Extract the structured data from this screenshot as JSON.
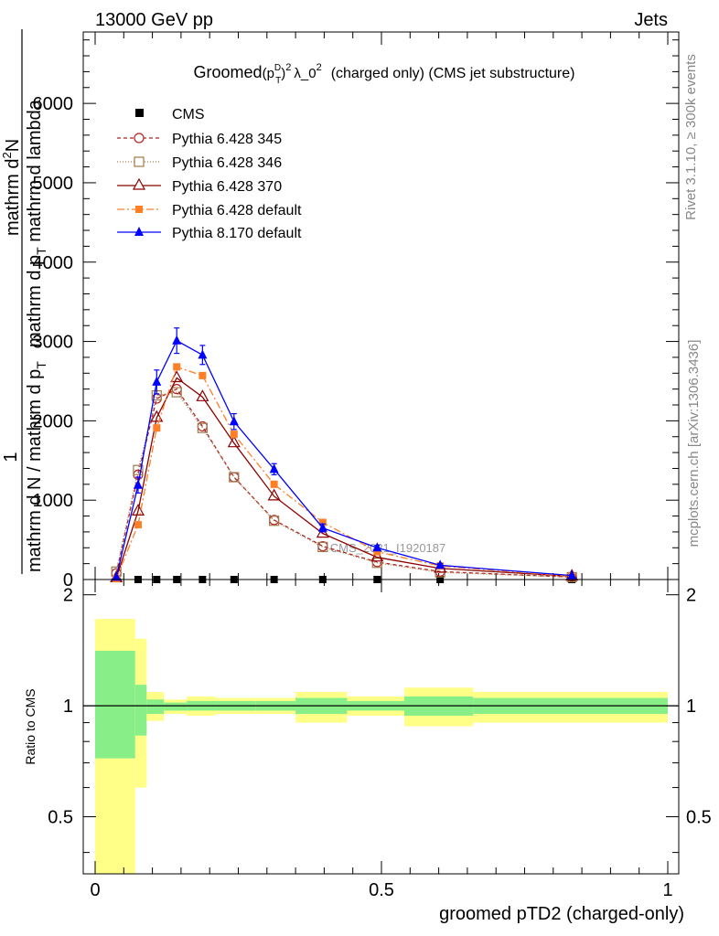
{
  "header": {
    "energy_label": "13000 GeV pp",
    "process_label": "Jets",
    "rivet_label": "Rivet 3.1.10, ≥ 300k events",
    "mcplots_label": "mcplots.cern.ch [arXiv:1306.3436]"
  },
  "chart_data": [
    {
      "type": "line",
      "title_main": "Groomed",
      "title_formula": "(p",
      "title_sup_d": "D",
      "title_sub_t": "T",
      "title_close": ")",
      "title_sup_2a": "2",
      "title_lambda": "λ_0",
      "title_sup_2b": "2",
      "title_tail": "(charged only) (CMS jet substructure)",
      "ylabel_lines": [
        "1",
        "mathrm d N / mathrm d p_T",
        "mathrm d p_T mathrm d lambda",
        "mathrm d^2N"
      ],
      "ylabel_parts": {
        "one": "1",
        "denominator": "mathrm d N / mathrm d p",
        "denominator_sub": "T",
        "numerator_a": "mathrm d p",
        "numerator_a_sub": "T",
        "numerator_b": " mathrm d lambda",
        "numerator_c": "mathrm d",
        "numerator_c_sup": "2",
        "numerator_d": "N"
      },
      "xlim": [
        0,
        1
      ],
      "ylim": [
        0,
        6900
      ],
      "yticks": [
        0,
        1000,
        2000,
        3000,
        4000,
        5000,
        6000
      ],
      "ytick_labels": [
        "0",
        "1000",
        "2000",
        "3000",
        "4000",
        "5000",
        "6000"
      ],
      "watermark": "CMS_2021_I1920187",
      "legend": {
        "cms": "CMS",
        "py345": "Pythia 6.428 345",
        "py346": "Pythia 6.428 346",
        "py370": "Pythia 6.428 370",
        "pydef": "Pythia 6.428 default",
        "py8": "Pythia 8.170 default"
      },
      "series": [
        {
          "name": "CMS",
          "color": "#000000",
          "x": [
            0.075,
            0.1075,
            0.1425,
            0.1875,
            0.2425,
            0.3125,
            0.3975,
            0.4925,
            0.6025,
            0.8325
          ],
          "y": [
            0,
            0,
            0,
            0,
            0,
            0,
            0,
            0,
            0,
            0
          ]
        },
        {
          "name": "Pythia 6.428 345",
          "color": "#b22222",
          "x": [
            0.037,
            0.075,
            0.1075,
            0.1425,
            0.1875,
            0.2425,
            0.3125,
            0.3975,
            0.4925,
            0.6025,
            0.8325
          ],
          "y": [
            80,
            1320,
            2280,
            2400,
            1930,
            1290,
            750,
            420,
            220,
            100,
            30
          ]
        },
        {
          "name": "Pythia 6.428 346",
          "color": "#a0784a",
          "x": [
            0.037,
            0.075,
            0.1075,
            0.1425,
            0.1875,
            0.2425,
            0.3125,
            0.3975,
            0.4925,
            0.6025,
            0.8325
          ],
          "y": [
            100,
            1380,
            2320,
            2360,
            1910,
            1290,
            740,
            410,
            210,
            90,
            30
          ]
        },
        {
          "name": "Pythia 6.428 370",
          "color": "#8b0000",
          "x": [
            0.037,
            0.075,
            0.1075,
            0.1425,
            0.1875,
            0.2425,
            0.3125,
            0.3975,
            0.4925,
            0.6025,
            0.8325
          ],
          "y": [
            20,
            860,
            2040,
            2540,
            2300,
            1720,
            1050,
            580,
            280,
            140,
            40
          ]
        },
        {
          "name": "Pythia 6.428 default",
          "color": "#ff7f27",
          "x": [
            0.037,
            0.075,
            0.1075,
            0.1425,
            0.1875,
            0.2425,
            0.3125,
            0.3975,
            0.4925,
            0.6025,
            0.8325
          ],
          "y": [
            10,
            690,
            1910,
            2680,
            2570,
            1830,
            1200,
            720,
            350,
            170,
            40
          ]
        },
        {
          "name": "Pythia 8.170 default",
          "color": "#0000ff",
          "x": [
            0.037,
            0.075,
            0.1075,
            0.1425,
            0.1875,
            0.2425,
            0.3125,
            0.3975,
            0.4925,
            0.6025,
            0.8325
          ],
          "y": [
            30,
            1190,
            2490,
            3010,
            2830,
            1990,
            1390,
            650,
            400,
            180,
            50
          ],
          "yerr": [
            0,
            100,
            150,
            160,
            120,
            100,
            70,
            50,
            30,
            20,
            10
          ]
        }
      ]
    },
    {
      "type": "area",
      "ylabel": "Ratio to CMS",
      "xlabel": "groomed pTD2 (charged-only)",
      "xlim": [
        0,
        1
      ],
      "ylim": [
        0.35,
        2.2
      ],
      "xticks": [
        0,
        0.5,
        1
      ],
      "xtick_labels": [
        "0",
        "0.5",
        "1"
      ],
      "yticks": [
        0.5,
        1,
        2
      ],
      "ytick_labels": [
        "0.5",
        "1",
        "2"
      ],
      "bins": [
        {
          "x0": 0.0,
          "x1": 0.07,
          "inner": [
            0.72,
            1.41
          ],
          "outer": [
            0.2,
            1.72
          ]
        },
        {
          "x0": 0.07,
          "x1": 0.09,
          "inner": [
            0.83,
            1.14
          ],
          "outer": [
            0.6,
            1.52
          ]
        },
        {
          "x0": 0.09,
          "x1": 0.12,
          "inner": [
            0.95,
            1.04
          ],
          "outer": [
            0.91,
            1.09
          ]
        },
        {
          "x0": 0.12,
          "x1": 0.16,
          "inner": [
            0.97,
            1.02
          ],
          "outer": [
            0.95,
            1.04
          ]
        },
        {
          "x0": 0.16,
          "x1": 0.21,
          "inner": [
            0.97,
            1.03
          ],
          "outer": [
            0.94,
            1.06
          ]
        },
        {
          "x0": 0.21,
          "x1": 0.28,
          "inner": [
            0.97,
            1.03
          ],
          "outer": [
            0.95,
            1.05
          ]
        },
        {
          "x0": 0.28,
          "x1": 0.35,
          "inner": [
            0.97,
            1.03
          ],
          "outer": [
            0.95,
            1.05
          ]
        },
        {
          "x0": 0.35,
          "x1": 0.44,
          "inner": [
            0.95,
            1.05
          ],
          "outer": [
            0.9,
            1.09
          ]
        },
        {
          "x0": 0.44,
          "x1": 0.54,
          "inner": [
            0.97,
            1.03
          ],
          "outer": [
            0.94,
            1.06
          ]
        },
        {
          "x0": 0.54,
          "x1": 0.66,
          "inner": [
            0.94,
            1.06
          ],
          "outer": [
            0.88,
            1.12
          ]
        },
        {
          "x0": 0.66,
          "x1": 1.0,
          "inner": [
            0.95,
            1.05
          ],
          "outer": [
            0.9,
            1.09
          ]
        }
      ]
    }
  ]
}
